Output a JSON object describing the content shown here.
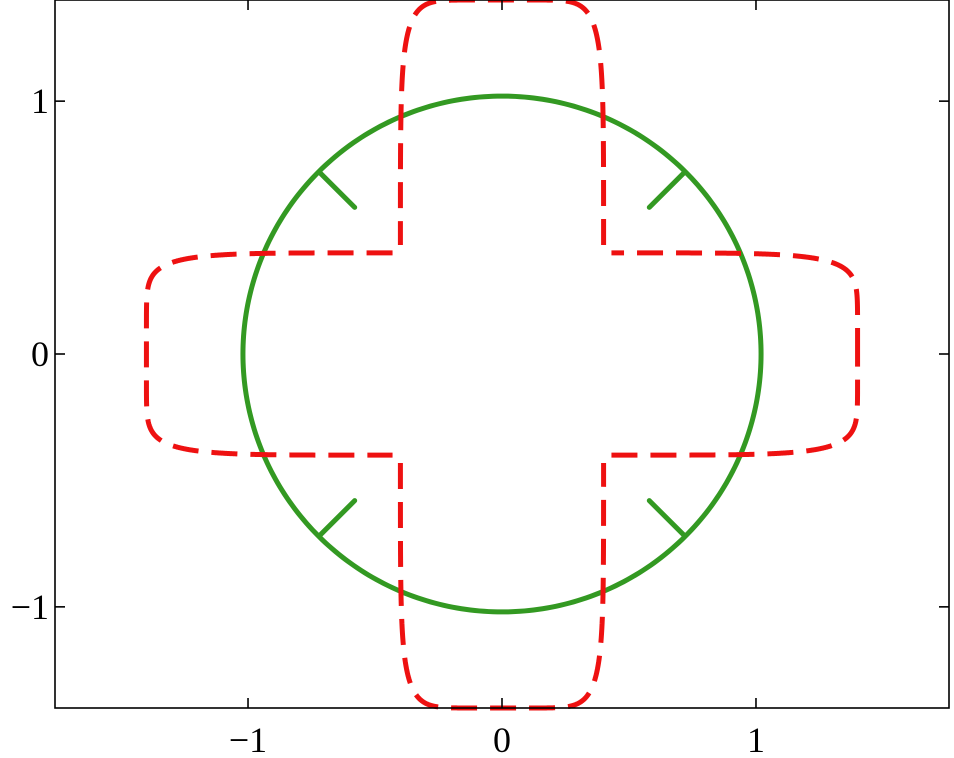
{
  "chart_data": {
    "type": "line",
    "title": "",
    "xlabel": "",
    "ylabel": "",
    "xlim": [
      -1.76,
      1.76
    ],
    "ylim": [
      -1.4,
      1.4
    ],
    "grid": false,
    "legend": "none",
    "x_ticks": [
      -1,
      0,
      1
    ],
    "y_ticks": [
      -1,
      0,
      1
    ],
    "x_tick_labels": [
      "−1",
      "0",
      "1"
    ],
    "y_tick_labels": [
      "−1",
      "0",
      "1"
    ],
    "colors": {
      "axes": "#000000",
      "circle": "#339922",
      "cross": "#ee1111"
    },
    "series": [
      {
        "style": "solid",
        "color": "#339922",
        "shape": "circle",
        "radius": 1.02,
        "segments": [
          [
            [
              -0.72,
              0.72
            ],
            [
              -0.58,
              0.58
            ]
          ],
          [
            [
              0.72,
              0.72
            ],
            [
              0.58,
              0.58
            ]
          ],
          [
            [
              -0.72,
              -0.72
            ],
            [
              -0.58,
              -0.58
            ]
          ],
          [
            [
              0.72,
              -0.72
            ],
            [
              0.58,
              -0.58
            ]
          ]
        ]
      },
      {
        "style": "dashed",
        "color": "#ee1111",
        "shape": "superellipse-cross",
        "long_semi_axis": 1.4,
        "short_semi_axis": 0.4,
        "exponent": 8
      }
    ]
  }
}
